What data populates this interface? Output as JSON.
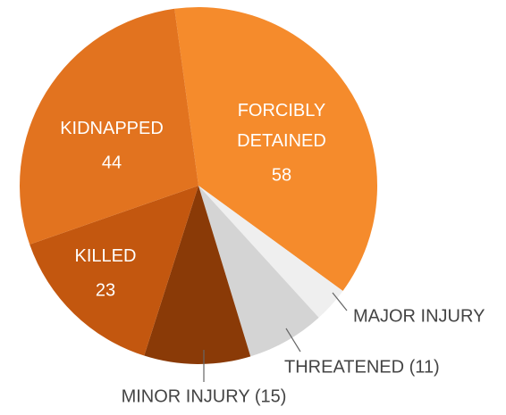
{
  "chart_data": {
    "type": "pie",
    "categories": [
      "FORCIBLY DETAINED",
      "MAJOR INJURY",
      "THREATENED (11)",
      "MINOR INJURY (15)",
      "KILLED",
      "KIDNAPPED"
    ],
    "values": [
      58,
      5,
      11,
      15,
      23,
      44
    ],
    "colors": [
      "#f58b2c",
      "#efefef",
      "#d4d4d4",
      "#8a3a07",
      "#c3570f",
      "#e2731f"
    ]
  }
}
